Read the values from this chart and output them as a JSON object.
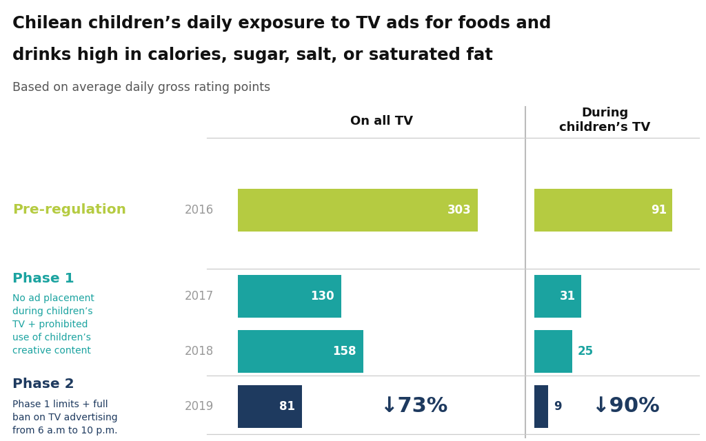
{
  "title_line1": "Chilean children’s daily exposure to TV ads for foods and",
  "title_line2": "drinks high in calories, sugar, salt, or saturated fat",
  "subtitle": "Based on average daily gross rating points",
  "col1_header": "On all TV",
  "col2_header": "During\nchildren’s TV",
  "years": [
    "2016",
    "2017",
    "2018",
    "2019"
  ],
  "all_tv_values": [
    303,
    130,
    158,
    81
  ],
  "childrens_tv_values": [
    91,
    31,
    25,
    9
  ],
  "all_tv_colors": [
    "#b5cb41",
    "#1ba3a0",
    "#1ba3a0",
    "#1e3a5f"
  ],
  "childrens_tv_colors": [
    "#b5cb41",
    "#1ba3a0",
    "#1ba3a0",
    "#1e3a5f"
  ],
  "pct_drop_all_tv": "↓73%",
  "pct_drop_childrens_tv": "↓90%",
  "pct_drop_color": "#1e3a5f",
  "year_color": "#999999",
  "background_color": "#ffffff",
  "bar_max_all": 350,
  "bar_max_ch": 110,
  "title_color": "#111111",
  "subtitle_color": "#555555",
  "separator_color": "#cccccc",
  "header_color": "#111111"
}
